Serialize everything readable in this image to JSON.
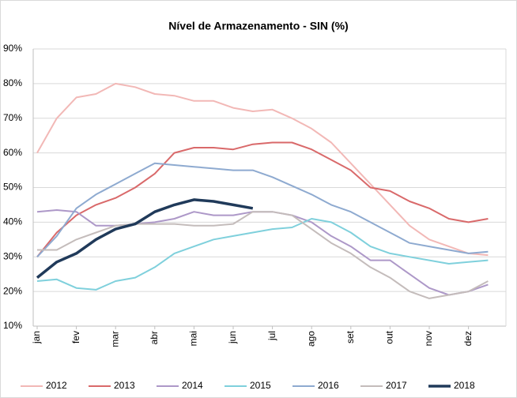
{
  "chart_data": {
    "type": "line",
    "title": "Nível de Armazenamento - SIN (%)",
    "categories": [
      "jan",
      null,
      "fev",
      null,
      "mar",
      null,
      "abr",
      null,
      "mai",
      null,
      "jun",
      null,
      "jul",
      null,
      "ago",
      null,
      "set",
      null,
      "out",
      null,
      "nov",
      null,
      "dez",
      null
    ],
    "ylim": [
      10,
      90
    ],
    "yticks": [
      {
        "value": 10,
        "label": "10%"
      },
      {
        "value": 20,
        "label": "20%"
      },
      {
        "value": 30,
        "label": "30%"
      },
      {
        "value": 40,
        "label": "40%"
      },
      {
        "value": 50,
        "label": "50%"
      },
      {
        "value": 60,
        "label": "60%"
      },
      {
        "value": 70,
        "label": "70%"
      },
      {
        "value": 80,
        "label": "80%"
      },
      {
        "value": 90,
        "label": "90%"
      }
    ],
    "grid": true,
    "series": [
      {
        "name": "2012",
        "color": "#f2b8b6",
        "width": 2,
        "values": [
          60,
          70,
          76,
          77,
          80,
          79,
          77,
          76.5,
          75,
          75,
          73,
          72,
          72.5,
          70,
          67,
          63,
          57,
          51,
          45,
          39,
          35,
          33,
          31,
          30.5
        ]
      },
      {
        "name": "2013",
        "color": "#d9696a",
        "width": 2,
        "values": [
          30,
          37,
          42,
          45,
          47,
          50,
          54,
          60,
          61.5,
          61.5,
          61,
          62.5,
          63,
          63,
          61,
          58,
          55,
          50,
          49,
          46,
          44,
          41,
          40,
          41
        ]
      },
      {
        "name": "2014",
        "color": "#ad98c8",
        "width": 2,
        "values": [
          43,
          43.5,
          43,
          39,
          39,
          39.5,
          40,
          41,
          43,
          42,
          42,
          43,
          43,
          42,
          40,
          36,
          33,
          29,
          29,
          25,
          21,
          19,
          20,
          22
        ]
      },
      {
        "name": "2015",
        "color": "#7fd0dc",
        "width": 2,
        "values": [
          23,
          23.5,
          21,
          20.5,
          23,
          24,
          27,
          31,
          33,
          35,
          36,
          37,
          38,
          38.5,
          41,
          40,
          37,
          33,
          31,
          30,
          29,
          28,
          28.5,
          29
        ]
      },
      {
        "name": "2016",
        "color": "#8eaad0",
        "width": 2,
        "values": [
          30,
          36,
          44,
          48,
          51,
          54,
          57,
          56.5,
          56,
          55.5,
          55,
          55,
          53,
          50.5,
          48,
          45,
          43,
          40,
          37,
          34,
          33,
          32,
          31,
          31.5
        ]
      },
      {
        "name": "2017",
        "color": "#c4bcbb",
        "width": 2,
        "values": [
          32,
          32,
          35,
          37,
          39,
          39.5,
          39.5,
          39.5,
          39,
          39,
          39.5,
          43,
          43,
          42,
          38,
          34,
          31,
          27,
          24,
          20,
          18,
          19,
          20,
          23
        ]
      },
      {
        "name": "2018",
        "color": "#203a5a",
        "width": 3.5,
        "values": [
          24,
          28.5,
          31,
          35,
          38,
          39.5,
          43,
          45,
          46.5,
          46,
          45,
          44,
          null,
          null,
          null,
          null,
          null,
          null,
          null,
          null,
          null,
          null,
          null,
          null
        ]
      }
    ]
  }
}
